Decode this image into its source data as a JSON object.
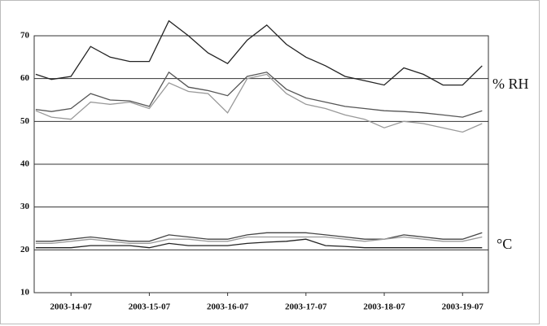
{
  "chart_data": {
    "type": "line",
    "x": [
      0.55,
      0.75,
      1,
      1.25,
      1.5,
      1.75,
      2,
      2.25,
      2.5,
      2.75,
      3,
      3.25,
      3.5,
      3.75,
      4,
      4.25,
      4.5,
      4.75,
      5,
      5.25,
      5.5,
      5.75,
      6,
      6.25
    ],
    "series": [
      {
        "color": "#222222",
        "values": [
          61,
          59.8,
          60.5,
          67.5,
          65,
          64,
          64,
          73.5,
          70,
          66,
          63.5,
          69,
          72.5,
          68,
          65,
          63,
          60.5,
          59.5,
          58.5,
          62.5,
          61,
          58.5,
          58.5,
          63
        ]
      },
      {
        "color": "#555555",
        "values": [
          52.8,
          52.3,
          53,
          56.5,
          55,
          54.8,
          53.5,
          61.5,
          58,
          57.2,
          56,
          60.5,
          61.5,
          57.5,
          55.5,
          54.5,
          53.5,
          53,
          52.5,
          52.3,
          52,
          51.5,
          51,
          52.5
        ]
      },
      {
        "color": "#999999",
        "values": [
          52.5,
          51,
          50.5,
          54.5,
          54,
          54.5,
          53,
          59,
          57,
          56.5,
          52,
          60,
          61,
          56.5,
          54,
          53,
          51.5,
          50.5,
          48.5,
          50,
          49.5,
          48.5,
          47.5,
          49.5
        ]
      },
      {
        "color": "#444444",
        "values": [
          22,
          22,
          22.5,
          23,
          22.5,
          22,
          22,
          23.5,
          23,
          22.5,
          22.5,
          23.5,
          24,
          24,
          24,
          23.5,
          23,
          22.5,
          22.5,
          23.5,
          23,
          22.5,
          22.5,
          24
        ]
      },
      {
        "color": "#999999",
        "values": [
          21.5,
          21.5,
          22,
          22.5,
          22,
          21.5,
          21.5,
          22.5,
          22.5,
          22,
          22,
          23,
          23,
          23,
          23,
          23,
          22.5,
          22,
          22.5,
          23,
          22.5,
          22,
          22,
          23
        ]
      },
      {
        "color": "#222222",
        "values": [
          20.5,
          20.5,
          20.5,
          21,
          21,
          21,
          20.5,
          21.5,
          21,
          21,
          21,
          21.5,
          21.8,
          22,
          22.5,
          21,
          20.8,
          20.5,
          20.5,
          20.5,
          20.5,
          20.5,
          20.5,
          20.5
        ]
      }
    ],
    "xlim": [
      0.53,
      6.33
    ],
    "xticks": [
      {
        "value": 1,
        "label": "2003-14-07"
      },
      {
        "value": 2,
        "label": "2003-15-07"
      },
      {
        "value": 3,
        "label": "2003-16-07"
      },
      {
        "value": 4,
        "label": "2003-17-07"
      },
      {
        "value": 5,
        "label": "2003-18-07"
      },
      {
        "value": 6,
        "label": "2003-19-07"
      }
    ],
    "ylim": [
      10,
      70
    ],
    "yticks": [
      10,
      20,
      30,
      40,
      50,
      60,
      70
    ],
    "grid": true,
    "annotations": [
      "% RH",
      "°C"
    ]
  }
}
